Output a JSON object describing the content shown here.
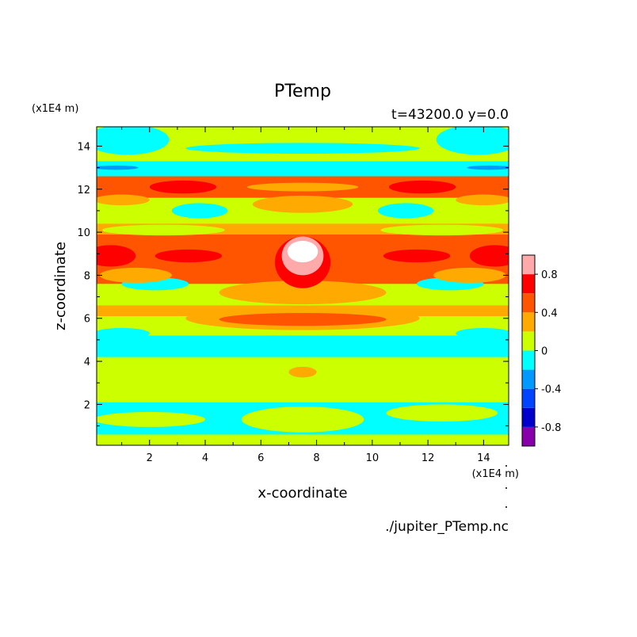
{
  "chart_data": {
    "type": "heatmap",
    "title": "PTemp",
    "subtitle": "t=43200.0 y=0.0",
    "xlabel": "x-coordinate",
    "ylabel": "z-coordinate",
    "x_unit": "(x1E4 m)",
    "y_unit": "(x1E4 m)",
    "footer": "./jupiter_PTemp.nc",
    "xlim": [
      0.1,
      14.9
    ],
    "ylim": [
      0.1,
      14.9
    ],
    "x_ticks": [
      2,
      4,
      6,
      8,
      10,
      12,
      14
    ],
    "y_ticks": [
      2,
      4,
      6,
      8,
      10,
      12,
      14
    ],
    "colorbar": {
      "levels": [
        -1.0,
        -0.8,
        -0.6,
        -0.4,
        -0.2,
        0,
        0.2,
        0.4,
        0.6,
        0.8,
        1.0
      ],
      "colors": [
        "#8800aa",
        "#0000cc",
        "#0044ff",
        "#0099ff",
        "#00ffff",
        "#ccff00",
        "#ffaa00",
        "#ff5500",
        "#ff0000",
        "#ffaaaa"
      ],
      "tick_labels": [
        {
          "value": 0.8,
          "label": "0.8"
        },
        {
          "value": 0.4,
          "label": "0.4"
        },
        {
          "value": 0,
          "label": "0"
        },
        {
          "value": -0.4,
          "label": "-0.4"
        },
        {
          "value": -0.8,
          "label": "-0.8"
        }
      ]
    },
    "colors": {
      "v_m08": "#0000cc",
      "v_m04": "#0099ff",
      "v_m02": "#00ffff",
      "v_0": "#ccff00",
      "v_02": "#ffaa00",
      "v_04": "#ff5500",
      "v_06": "#ff0000",
      "v_08": "#ffaaaa",
      "v_10": "#ffffff"
    },
    "bands": [
      {
        "z0": 0.1,
        "z1": 0.6,
        "value": "v_0"
      },
      {
        "z0": 0.6,
        "z1": 2.1,
        "value": "v_m02"
      },
      {
        "z0": 2.1,
        "z1": 4.2,
        "value": "v_0"
      },
      {
        "z0": 4.2,
        "z1": 5.2,
        "value": "v_m02"
      },
      {
        "z0": 5.2,
        "z1": 6.1,
        "value": "v_0"
      },
      {
        "z0": 6.1,
        "z1": 6.6,
        "value": "v_02"
      },
      {
        "z0": 6.6,
        "z1": 7.6,
        "value": "v_0"
      },
      {
        "z0": 7.6,
        "z1": 9.9,
        "value": "v_04"
      },
      {
        "z0": 9.9,
        "z1": 10.4,
        "value": "v_02"
      },
      {
        "z0": 10.4,
        "z1": 11.6,
        "value": "v_0"
      },
      {
        "z0": 11.6,
        "z1": 12.6,
        "value": "v_04"
      },
      {
        "z0": 12.6,
        "z1": 13.3,
        "value": "v_m02"
      },
      {
        "z0": 13.3,
        "z1": 14.9,
        "value": "v_0"
      }
    ],
    "patches": [
      {
        "cx": 2.0,
        "cz": 1.3,
        "rx": 2.0,
        "rz": 0.35,
        "value": "v_0"
      },
      {
        "cx": 12.5,
        "cz": 1.6,
        "rx": 2.0,
        "rz": 0.4,
        "value": "v_0"
      },
      {
        "cx": 7.5,
        "cz": 1.3,
        "rx": 2.2,
        "rz": 0.6,
        "value": "v_0"
      },
      {
        "cx": 7.5,
        "cz": 3.5,
        "rx": 0.5,
        "rz": 0.25,
        "value": "v_02"
      },
      {
        "cx": 1.0,
        "cz": 5.3,
        "rx": 1.0,
        "rz": 0.25,
        "value": "v_m02"
      },
      {
        "cx": 14.0,
        "cz": 5.3,
        "rx": 1.0,
        "rz": 0.25,
        "value": "v_m02"
      },
      {
        "cx": 7.5,
        "cz": 6.0,
        "rx": 4.2,
        "rz": 0.55,
        "value": "v_02"
      },
      {
        "cx": 7.5,
        "cz": 5.95,
        "rx": 3.0,
        "rz": 0.3,
        "value": "v_04"
      },
      {
        "cx": 2.2,
        "cz": 7.6,
        "rx": 1.2,
        "rz": 0.3,
        "value": "v_m02"
      },
      {
        "cx": 12.8,
        "cz": 7.6,
        "rx": 1.2,
        "rz": 0.3,
        "value": "v_m02"
      },
      {
        "cx": 7.5,
        "cz": 7.2,
        "rx": 3.0,
        "rz": 0.55,
        "value": "v_02"
      },
      {
        "cx": 1.5,
        "cz": 8.0,
        "rx": 1.3,
        "rz": 0.35,
        "value": "v_02"
      },
      {
        "cx": 13.5,
        "cz": 8.0,
        "rx": 1.3,
        "rz": 0.35,
        "value": "v_02"
      },
      {
        "cx": 0.6,
        "cz": 8.9,
        "rx": 0.9,
        "rz": 0.5,
        "value": "v_06"
      },
      {
        "cx": 14.4,
        "cz": 8.9,
        "rx": 0.9,
        "rz": 0.5,
        "value": "v_06"
      },
      {
        "cx": 3.4,
        "cz": 8.9,
        "rx": 1.2,
        "rz": 0.3,
        "value": "v_06"
      },
      {
        "cx": 11.6,
        "cz": 8.9,
        "rx": 1.2,
        "rz": 0.3,
        "value": "v_06"
      },
      {
        "cx": 7.5,
        "cz": 8.6,
        "rx": 1.0,
        "rz": 1.2,
        "value": "v_06"
      },
      {
        "cx": 7.5,
        "cz": 8.9,
        "rx": 0.75,
        "rz": 0.9,
        "value": "v_08"
      },
      {
        "cx": 7.5,
        "cz": 9.1,
        "rx": 0.55,
        "rz": 0.5,
        "value": "v_10"
      },
      {
        "cx": 2.5,
        "cz": 10.1,
        "rx": 2.2,
        "rz": 0.25,
        "value": "v_0"
      },
      {
        "cx": 12.5,
        "cz": 10.1,
        "rx": 2.2,
        "rz": 0.25,
        "value": "v_0"
      },
      {
        "cx": 3.8,
        "cz": 11.0,
        "rx": 1.0,
        "rz": 0.35,
        "value": "v_m02"
      },
      {
        "cx": 11.2,
        "cz": 11.0,
        "rx": 1.0,
        "rz": 0.35,
        "value": "v_m02"
      },
      {
        "cx": 1.0,
        "cz": 11.5,
        "rx": 1.0,
        "rz": 0.25,
        "value": "v_02"
      },
      {
        "cx": 14.0,
        "cz": 11.5,
        "rx": 1.0,
        "rz": 0.25,
        "value": "v_02"
      },
      {
        "cx": 7.5,
        "cz": 11.3,
        "rx": 1.8,
        "rz": 0.4,
        "value": "v_02"
      },
      {
        "cx": 3.2,
        "cz": 12.1,
        "rx": 1.2,
        "rz": 0.3,
        "value": "v_06"
      },
      {
        "cx": 11.8,
        "cz": 12.1,
        "rx": 1.2,
        "rz": 0.3,
        "value": "v_06"
      },
      {
        "cx": 7.5,
        "cz": 12.1,
        "rx": 2.0,
        "rz": 0.2,
        "value": "v_02"
      },
      {
        "cx": 0.8,
        "cz": 13.0,
        "rx": 0.8,
        "rz": 0.1,
        "value": "v_m04"
      },
      {
        "cx": 14.2,
        "cz": 13.0,
        "rx": 0.8,
        "rz": 0.1,
        "value": "v_m04"
      },
      {
        "cx": 1.2,
        "cz": 14.3,
        "rx": 1.5,
        "rz": 0.7,
        "value": "v_m02"
      },
      {
        "cx": 13.8,
        "cz": 14.3,
        "rx": 1.5,
        "rz": 0.7,
        "value": "v_m02"
      },
      {
        "cx": 7.5,
        "cz": 13.9,
        "rx": 4.2,
        "rz": 0.25,
        "value": "v_m02"
      }
    ]
  }
}
